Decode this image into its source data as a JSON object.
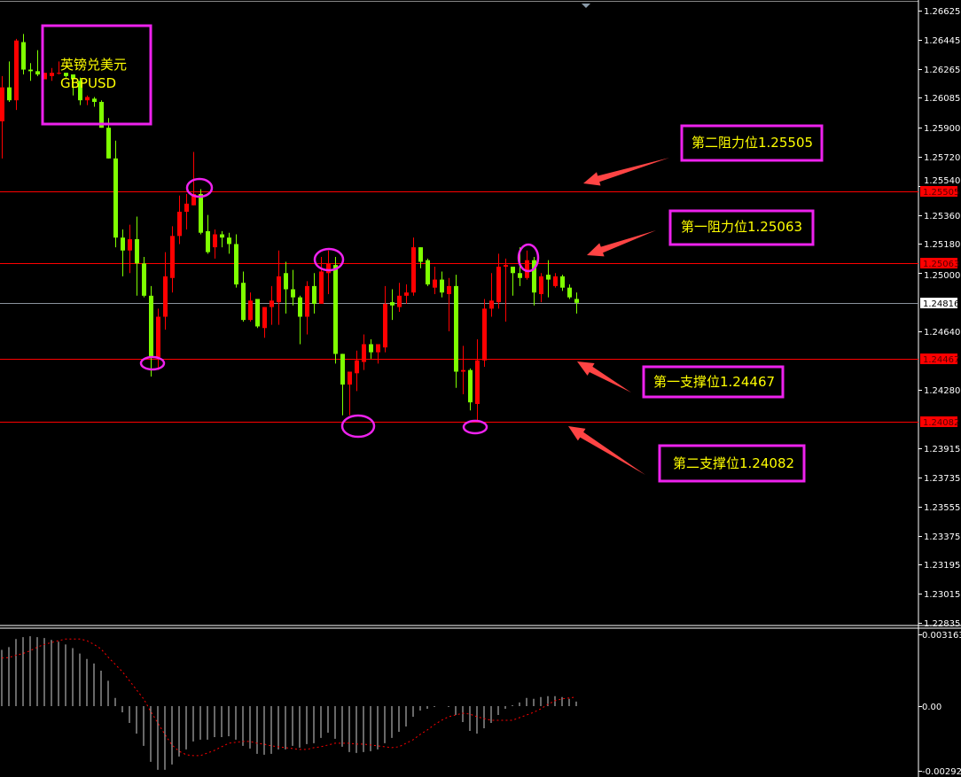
{
  "symbol_box": {
    "line1": "英镑兑美元",
    "line2": "GBPUSD"
  },
  "annotations": [
    {
      "id": "resistance-2",
      "text": "第二阻力位1.25505",
      "level": 1.25505
    },
    {
      "id": "resistance-1",
      "text": "第一阻力位1.25063",
      "level": 1.25063
    },
    {
      "id": "support-1",
      "text": "第一支撑位1.24467",
      "level": 1.24467
    },
    {
      "id": "support-2",
      "text": "第二支撑位1.24082",
      "level": 1.24082
    }
  ],
  "colors": {
    "background": "#000000",
    "bull_candle": "#ff0000",
    "bear_candle": "#7fff00",
    "level_line": "#ff0000",
    "bid_line": "#8a929c",
    "annotation_box": "#ee22ee",
    "annotation_text": "#ffff00",
    "arrow": "#ff4444",
    "macd_histogram": "#d0d0d0",
    "macd_signal": "#ff0000"
  },
  "chart_data": [
    {
      "type": "candlestick",
      "symbol": "GBPUSD",
      "ylim": [
        1.22835,
        1.26625
      ],
      "y_ticks": [
        "1.26625",
        "1.26445",
        "1.26265",
        "1.26085",
        "1.25900",
        "1.25720",
        "1.25540",
        "1.25360",
        "1.25180",
        "1.25000",
        "1.24640",
        "1.24280",
        "1.23915",
        "1.23735",
        "1.23555",
        "1.23375",
        "1.23195",
        "1.23015",
        "1.22835"
      ],
      "price_tags": [
        {
          "value": "1.25505",
          "kind": "level"
        },
        {
          "value": "1.25063",
          "kind": "level"
        },
        {
          "value": "1.24816",
          "kind": "bid"
        },
        {
          "value": "1.24467",
          "kind": "level"
        },
        {
          "value": "1.24082",
          "kind": "level"
        }
      ],
      "ohlc": [
        [
          1.2594,
          1.2622,
          1.2571,
          1.2615
        ],
        [
          1.2615,
          1.2631,
          1.2606,
          1.2607
        ],
        [
          1.2607,
          1.2645,
          1.2601,
          1.2644
        ],
        [
          1.2643,
          1.2648,
          1.2623,
          1.2626
        ],
        [
          1.2626,
          1.263,
          1.2619,
          1.2625
        ],
        [
          1.2625,
          1.2638,
          1.2622,
          1.2623
        ],
        [
          1.262,
          1.2624,
          1.262,
          1.2624
        ],
        [
          1.2622,
          1.2627,
          1.2619,
          1.2624
        ],
        [
          1.2624,
          1.2631,
          1.2623,
          1.2624
        ],
        [
          1.2624,
          1.2624,
          1.2621,
          1.2622
        ],
        [
          1.2623,
          1.2623,
          1.261,
          1.262
        ],
        [
          1.2619,
          1.2621,
          1.2604,
          1.2607
        ],
        [
          1.2607,
          1.261,
          1.2604,
          1.2609
        ],
        [
          1.2608,
          1.2609,
          1.2603,
          1.2606
        ],
        [
          1.2606,
          1.2607,
          1.259,
          1.259
        ],
        [
          1.259,
          1.2596,
          1.2571,
          1.2571
        ],
        [
          1.2571,
          1.2582,
          1.2516,
          1.2522
        ],
        [
          1.2522,
          1.2527,
          1.2498,
          1.2514
        ],
        [
          1.2514,
          1.253,
          1.25,
          1.2521
        ],
        [
          1.2521,
          1.2535,
          1.2486,
          1.2506
        ],
        [
          1.2506,
          1.251,
          1.2485,
          1.2486
        ],
        [
          1.2486,
          1.2492,
          1.2436,
          1.2448
        ],
        [
          1.2448,
          1.2478,
          1.244,
          1.2473
        ],
        [
          1.2473,
          1.2513,
          1.2465,
          1.2498
        ],
        [
          1.2497,
          1.2529,
          1.2488,
          1.2523
        ],
        [
          1.2523,
          1.2548,
          1.2518,
          1.2538
        ],
        [
          1.2538,
          1.2549,
          1.2527,
          1.2543
        ],
        [
          1.2542,
          1.2575,
          1.2542,
          1.2549
        ],
        [
          1.2549,
          1.2552,
          1.2524,
          1.2525
        ],
        [
          1.2526,
          1.2536,
          1.2512,
          1.2513
        ],
        [
          1.2516,
          1.2527,
          1.2509,
          1.2524
        ],
        [
          1.2524,
          1.2526,
          1.2516,
          1.2522
        ],
        [
          1.2522,
          1.2525,
          1.2512,
          1.2518
        ],
        [
          1.2518,
          1.2524,
          1.2491,
          1.2493
        ],
        [
          1.2494,
          1.2501,
          1.247,
          1.2471
        ],
        [
          1.2471,
          1.2488,
          1.247,
          1.2483
        ],
        [
          1.2484,
          1.2484,
          1.2466,
          1.2467
        ],
        [
          1.2466,
          1.2479,
          1.246,
          1.2479
        ],
        [
          1.2479,
          1.2492,
          1.2468,
          1.2483
        ],
        [
          1.2482,
          1.2514,
          1.2468,
          1.2498
        ],
        [
          1.25,
          1.2507,
          1.2475,
          1.249
        ],
        [
          1.249,
          1.2502,
          1.248,
          1.2485
        ],
        [
          1.2485,
          1.2486,
          1.2456,
          1.2473
        ],
        [
          1.2473,
          1.2495,
          1.2462,
          1.2492
        ],
        [
          1.2492,
          1.25,
          1.2475,
          1.2481
        ],
        [
          1.2481,
          1.251,
          1.2481,
          1.2501
        ],
        [
          1.25,
          1.2514,
          1.2487,
          1.2506
        ],
        [
          1.2505,
          1.251,
          1.2444,
          1.245
        ],
        [
          1.245,
          1.245,
          1.2412,
          1.2431
        ],
        [
          1.2431,
          1.2439,
          1.2412,
          1.2439
        ],
        [
          1.2438,
          1.2452,
          1.2427,
          1.2446
        ],
        [
          1.2445,
          1.2462,
          1.244,
          1.2456
        ],
        [
          1.2456,
          1.2459,
          1.2447,
          1.2451
        ],
        [
          1.2451,
          1.2456,
          1.2444,
          1.2456
        ],
        [
          1.2454,
          1.2492,
          1.2451,
          1.2481
        ],
        [
          1.2482,
          1.249,
          1.2471,
          1.248
        ],
        [
          1.2479,
          1.2494,
          1.2476,
          1.2486
        ],
        [
          1.2486,
          1.2493,
          1.2481,
          1.2488
        ],
        [
          1.2488,
          1.2522,
          1.2486,
          1.2516
        ],
        [
          1.2516,
          1.2516,
          1.2503,
          1.2507
        ],
        [
          1.2508,
          1.2509,
          1.2492,
          1.2493
        ],
        [
          1.2491,
          1.2504,
          1.2487,
          1.2496
        ],
        [
          1.2496,
          1.2501,
          1.2485,
          1.2488
        ],
        [
          1.2487,
          1.2497,
          1.2464,
          1.2492
        ],
        [
          1.2492,
          1.2499,
          1.2429,
          1.2439
        ],
        [
          1.2439,
          1.2455,
          1.2425,
          1.244
        ],
        [
          1.244,
          1.2441,
          1.2415,
          1.242
        ],
        [
          1.2419,
          1.2459,
          1.2408,
          1.2446
        ],
        [
          1.2446,
          1.2484,
          1.2442,
          1.2478
        ],
        [
          1.2478,
          1.25,
          1.2473,
          1.2483
        ],
        [
          1.2482,
          1.2512,
          1.2478,
          1.2504
        ],
        [
          1.2504,
          1.2509,
          1.247,
          1.2505
        ],
        [
          1.2504,
          1.2504,
          1.2486,
          1.25
        ],
        [
          1.25,
          1.2516,
          1.2492,
          1.2497
        ],
        [
          1.2497,
          1.2514,
          1.2496,
          1.2508
        ],
        [
          1.2508,
          1.251,
          1.248,
          1.2488
        ],
        [
          1.2487,
          1.25,
          1.2482,
          1.2498
        ],
        [
          1.2499,
          1.2508,
          1.2485,
          1.2496
        ],
        [
          1.2492,
          1.25,
          1.2491,
          1.2498
        ],
        [
          1.2498,
          1.2499,
          1.2489,
          1.2491
        ],
        [
          1.2491,
          1.2493,
          1.2484,
          1.2485
        ],
        [
          1.2484,
          1.2488,
          1.2475,
          1.24816
        ]
      ]
    },
    {
      "type": "bar",
      "indicator": "MACD",
      "ylim": [
        -0.002926,
        0.003163
      ],
      "y_ticks": [
        "0.003163",
        "0.00",
        "-0.002926"
      ],
      "histogram": [
        0.00248,
        0.0026,
        0.00296,
        0.00304,
        0.00308,
        0.00304,
        0.003,
        0.00292,
        0.00284,
        0.00272,
        0.00256,
        0.00232,
        0.00208,
        0.00188,
        0.00156,
        0.00112,
        0.00036,
        -0.00028,
        -0.00076,
        -0.00124,
        -0.0018,
        -0.00252,
        -0.00288,
        -0.00288,
        -0.00264,
        -0.00228,
        -0.00196,
        -0.0016,
        -0.00152,
        -0.00152,
        -0.0014,
        -0.0014,
        -0.00136,
        -0.00152,
        -0.0018,
        -0.00192,
        -0.00216,
        -0.0022,
        -0.00216,
        -0.00196,
        -0.00196,
        -0.0018,
        -0.00188,
        -0.00172,
        -0.00168,
        -0.00144,
        -0.0012,
        -0.00148,
        -0.00184,
        -0.00208,
        -0.00212,
        -0.00208,
        -0.00204,
        -0.00196,
        -0.00168,
        -0.00144,
        -0.00116,
        -0.00092,
        -0.00048,
        -0.0002,
        -0.00012,
        -4e-05,
        0,
        -4e-05,
        -0.0004,
        -0.00072,
        -0.00112,
        -0.00124,
        -0.001,
        -0.00076,
        -0.0004,
        -0.00012,
        4e-05,
        0.00016,
        0.00036,
        0.00032,
        0.0004,
        0.00044,
        0.00044,
        0.0004,
        0.00032,
        0.0002
      ],
      "signal": [
        0.00212,
        0.00214,
        0.00224,
        0.00232,
        0.00244,
        0.0026,
        0.00272,
        0.0028,
        0.00288,
        0.00296,
        0.00296,
        0.00296,
        0.00288,
        0.00272,
        0.00252,
        0.00216,
        0.00184,
        0.00152,
        0.00112,
        0.00072,
        0.00032,
        -0.00024,
        -0.00076,
        -0.00128,
        -0.00176,
        -0.00204,
        -0.0022,
        -0.00224,
        -0.00224,
        -0.00212,
        -0.002,
        -0.00184,
        -0.00168,
        -0.00164,
        -0.0016,
        -0.0016,
        -0.00168,
        -0.00172,
        -0.0018,
        -0.00184,
        -0.00188,
        -0.00192,
        -0.00196,
        -0.00196,
        -0.00188,
        -0.00184,
        -0.00176,
        -0.00168,
        -0.00168,
        -0.00168,
        -0.00172,
        -0.00172,
        -0.00176,
        -0.0018,
        -0.00184,
        -0.00188,
        -0.00184,
        -0.00168,
        -0.00152,
        -0.00128,
        -0.00108,
        -0.00084,
        -0.00064,
        -0.00048,
        -0.0004,
        -0.00032,
        -0.00036,
        -0.00048,
        -0.00056,
        -0.00064,
        -0.00064,
        -0.00064,
        -0.00064,
        -0.00052,
        -0.0004,
        -0.00028,
        -0.00012,
        8e-05,
        0.00024,
        0.00032,
        0.00036,
        0.0004
      ]
    }
  ]
}
